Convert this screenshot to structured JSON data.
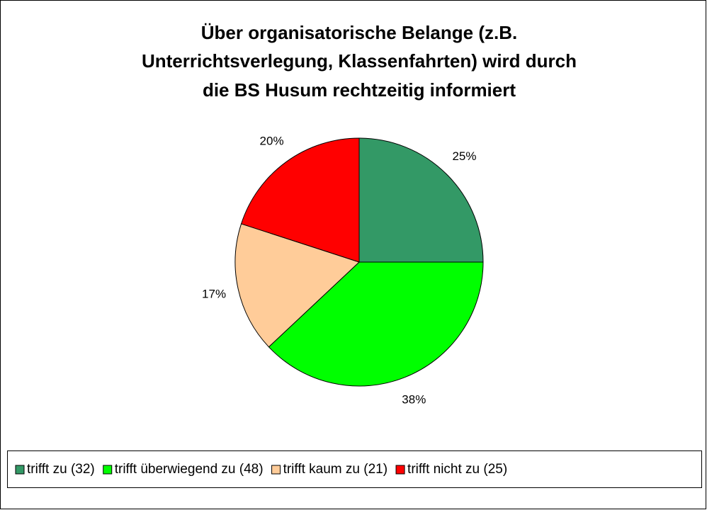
{
  "chart_data": {
    "type": "pie",
    "title": [
      "Über organisatorische Belange (z.B.",
      "Unterrichtsverlegung, Klassenfahrten) wird durch",
      "die BS Husum rechtzeitig informiert"
    ],
    "series": [
      {
        "name": "trifft zu (32)",
        "color": "#339966"
      },
      {
        "name": "trifft überwiegend zu (48)",
        "color": "#00ff00"
      },
      {
        "name": "trifft kaum zu (21)",
        "color": "#ffcc99"
      },
      {
        "name": "trifft nicht zu (25)",
        "color": "#ff0000"
      }
    ],
    "values": [
      25,
      38,
      17,
      20
    ],
    "value_labels": [
      "25%",
      "38%",
      "17%",
      "20%"
    ],
    "legend": "bottom"
  }
}
